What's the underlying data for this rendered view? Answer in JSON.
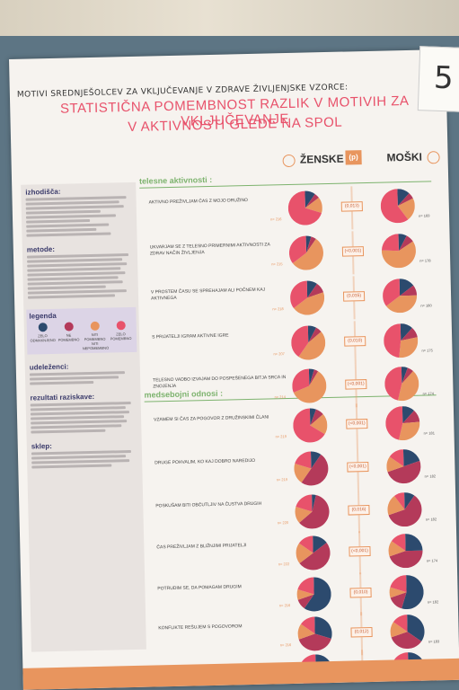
{
  "poster": {
    "header": "MOTIVI SREDNJEŠOLCEV ZA VKLJUČEVANJE V ZDRAVE ŽIVLJENJSKE VZORCE:",
    "title_line1": "STATISTIČNA POMEMBNOST RAZLIK V MOTIVIH ZA VKLJUČEVANJE",
    "title_line2": "V AKTIVNOSTI GLEDE NA SPOL",
    "col_female": "ŽENSKE",
    "col_p": "(p)",
    "col_male": "MOŠKI",
    "section1": "telesne aktivnosti :",
    "section2": "medsebojni odnosi :"
  },
  "left_panel": {
    "izhodisca": "izhodišča:",
    "metode": "metode:",
    "legend_title": "legenda",
    "legend_items": [
      {
        "label": "ZELO ODMAKNJENO",
        "color": "#2c4a6e"
      },
      {
        "label": "NE POMEMBNO",
        "color": "#b43a5a"
      },
      {
        "label": "NITI POMEMBNO NITI NEPOMEMBNO",
        "color": "#e8955e"
      },
      {
        "label": "ZELO POMEMBNO",
        "color": "#e8526b"
      }
    ],
    "udelezenci": "udeleženci:",
    "rezultati": "rezultati raziskave:",
    "sklep": "sklep:"
  },
  "rows": [
    {
      "label": "AKTIVNO PREŽIVLJAM ČAS Z MOJO DRUŽINO",
      "p": "(0,013)",
      "n1": "n= 216",
      "n2": "n= 169"
    },
    {
      "label": "UKVARJAM SE Z TELESNO PRIMERNIMI AKTIVNOSTI ZA ZDRAV NAČIN ŽIVLJENJA",
      "p": "(<0,001)",
      "n1": "n= 215",
      "n2": "n= 178"
    },
    {
      "label": "V PROSTEM ČASU SE SPREHAJAM ALI POČNEM KAJ AKTIVNEGA",
      "p": "(0,035)",
      "n1": "n= 218",
      "n2": "n= 180"
    },
    {
      "label": "S PRIJATELJI IGRAM AKTIVNE IGRE",
      "p": "(0,010)",
      "n1": "n= 207",
      "n2": "n= 175"
    },
    {
      "label": "TELESNO VADBO IZVAJAM DO POSPEŠENEGA BITJA SRCA IN ZNOJENJA",
      "p": "(<0,001)",
      "n1": "n= 214",
      "n2": "n= 174"
    },
    {
      "label": "VZAMEM SI ČAS ZA POGOVOR Z DRUŽINSKIMI ČLANI",
      "p": "(<0,001)",
      "n1": "n= 219",
      "n2": "n= 181"
    },
    {
      "label": "DRUGE POHVALIM, KO KAJ DOBRO NAREDIJO",
      "p": "(<0,001)",
      "n1": "n= 219",
      "n2": "n= 182"
    },
    {
      "label": "POSKUŠAM BITI OBČUTLJIV NA ČUSTVA DRUGIH",
      "p": "(0,016)",
      "n1": "n= 220",
      "n2": "n= 182"
    },
    {
      "label": "ČAS PREŽIVLJAM Z BLIŽNJIMI PRIJATELJI",
      "p": "(<0,001)",
      "n1": "n= 222",
      "n2": "n= 174"
    },
    {
      "label": "POTRUDIM SE, DA POMAGAM DRUGIM",
      "p": "(0,010)",
      "n1": "n= 216",
      "n2": "n= 182"
    },
    {
      "label": "KONFLIKTE REŠUJEM S POGOVOROM",
      "p": "(0,012)",
      "n1": "n= 216",
      "n2": "n= 183"
    },
    {
      "label": "",
      "p": "(<0,001)",
      "n1": "n= 219",
      "n2": "n= 179"
    }
  ],
  "board_number": "5",
  "colors": {
    "navy": "#2c4a6e",
    "maroon": "#b43a5a",
    "orange": "#e8955e",
    "pink": "#e8526b"
  }
}
